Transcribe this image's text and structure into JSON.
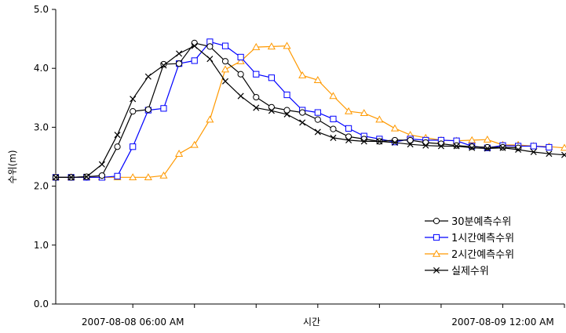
{
  "chart_data": {
    "type": "line",
    "title": "",
    "xlabel": "시간",
    "ylabel": "수위(m)",
    "ylim": [
      0,
      5
    ],
    "y_ticks": [
      "0.0",
      "1.0",
      "2.0",
      "3.0",
      "4.0",
      "5.0"
    ],
    "x_range_hours": [
      0,
      33
    ],
    "x_tick_labels": [
      {
        "label": "2007-08-08 06:00 AM",
        "hour": 5
      },
      {
        "label": "2007-08-09 12:00 AM",
        "hour": 29
      }
    ],
    "grid": false,
    "legend_position": "lower-right",
    "x": [
      0,
      1,
      2,
      3,
      4,
      5,
      6,
      7,
      8,
      9,
      10,
      11,
      12,
      13,
      14,
      15,
      16,
      17,
      18,
      19,
      20,
      21,
      22,
      23,
      24,
      25,
      26,
      27,
      28,
      29,
      30,
      31,
      32,
      33
    ],
    "series": [
      {
        "name": "30분예측수위",
        "marker": "circle",
        "color": "#000000",
        "values": [
          2.15,
          2.15,
          2.16,
          2.18,
          2.67,
          3.27,
          3.3,
          4.07,
          4.08,
          4.43,
          4.37,
          4.12,
          3.9,
          3.51,
          3.34,
          3.29,
          3.25,
          3.13,
          2.97,
          2.84,
          2.8,
          2.76,
          2.78,
          2.78,
          2.74,
          2.72,
          2.69,
          2.67,
          2.66,
          2.66,
          2.65,
          null,
          null,
          null
        ]
      },
      {
        "name": "1시간예측수위",
        "marker": "square",
        "color": "#0000ff",
        "values": [
          2.15,
          2.15,
          2.15,
          2.15,
          2.17,
          2.67,
          3.29,
          3.32,
          4.08,
          4.13,
          4.45,
          4.38,
          4.19,
          3.9,
          3.84,
          3.55,
          3.29,
          3.25,
          3.14,
          2.98,
          2.85,
          2.8,
          2.75,
          2.8,
          2.78,
          2.78,
          2.77,
          2.68,
          2.65,
          2.69,
          2.68,
          2.68,
          2.66,
          null
        ]
      },
      {
        "name": "2시간예측수위",
        "marker": "triangle",
        "color": "#ff9900",
        "values": [
          2.15,
          2.15,
          2.15,
          2.15,
          2.15,
          2.15,
          2.15,
          2.18,
          2.55,
          2.7,
          3.13,
          3.98,
          4.12,
          4.36,
          4.37,
          4.38,
          3.88,
          3.8,
          3.53,
          3.27,
          3.24,
          3.13,
          2.98,
          2.87,
          2.82,
          2.78,
          2.77,
          2.78,
          2.79,
          2.7,
          2.7,
          2.68,
          2.67,
          2.65
        ]
      },
      {
        "name": "실제수위",
        "marker": "x",
        "color": "#000000",
        "values": [
          2.15,
          2.15,
          2.16,
          2.37,
          2.87,
          3.48,
          3.86,
          4.05,
          4.25,
          4.38,
          4.16,
          3.78,
          3.53,
          3.33,
          3.28,
          3.22,
          3.08,
          2.92,
          2.82,
          2.78,
          2.76,
          2.76,
          2.74,
          2.71,
          2.69,
          2.68,
          2.68,
          2.65,
          2.64,
          2.65,
          2.62,
          2.58,
          2.55,
          2.53
        ]
      }
    ]
  }
}
